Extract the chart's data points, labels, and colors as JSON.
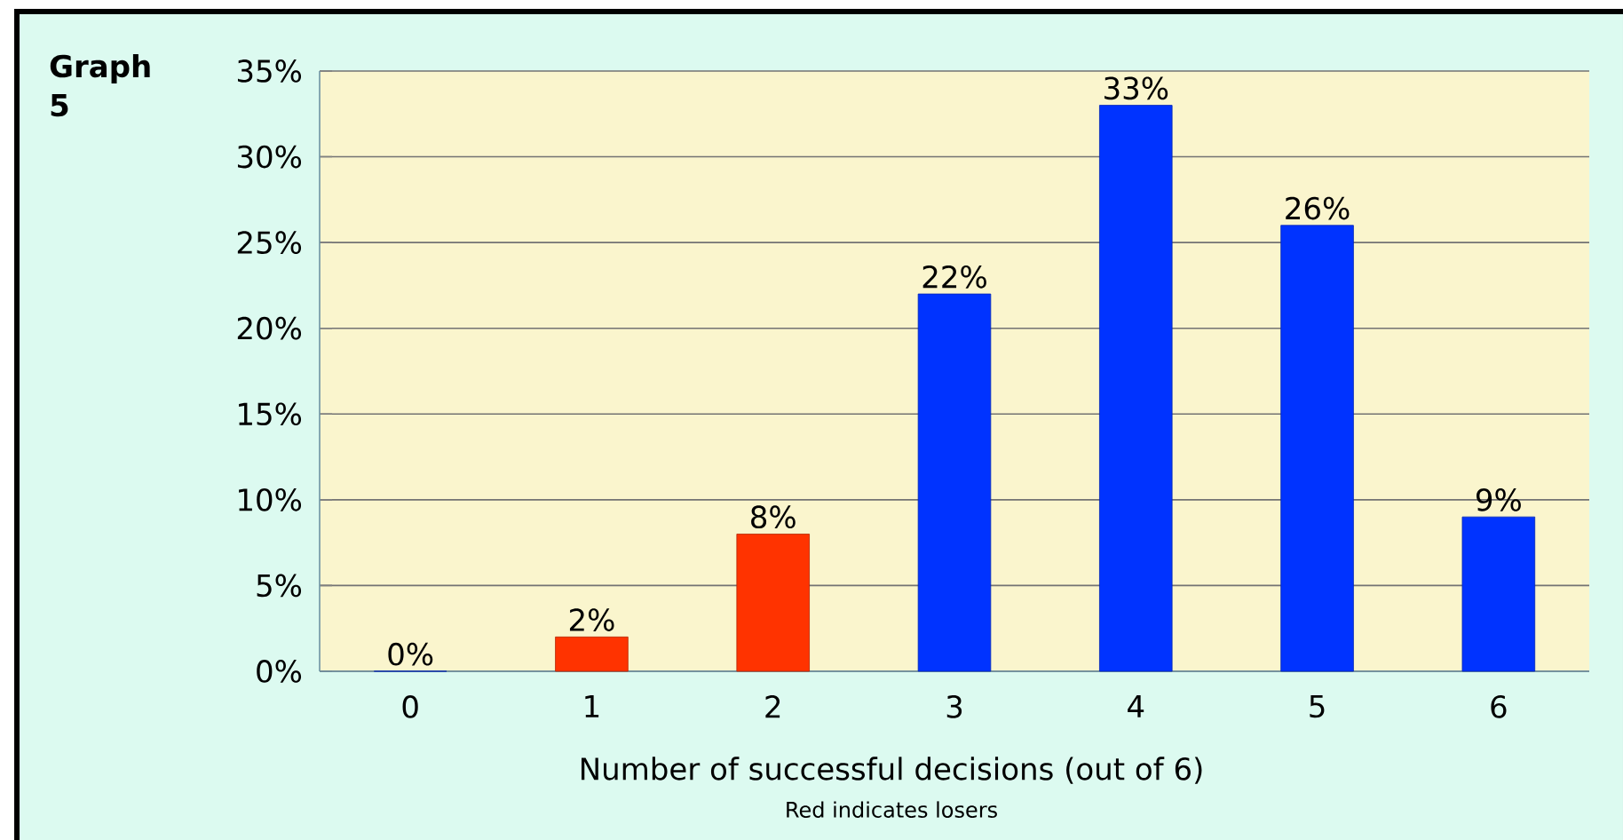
{
  "chart_data": {
    "type": "bar",
    "title": "Graph 5",
    "categories": [
      "0",
      "1",
      "2",
      "3",
      "4",
      "5",
      "6"
    ],
    "values": [
      0,
      2,
      8,
      22,
      33,
      26,
      9
    ],
    "colors": [
      "#0033ff",
      "#ff3300",
      "#ff3300",
      "#0033ff",
      "#0033ff",
      "#0033ff",
      "#0033ff"
    ],
    "value_labels": [
      "0%",
      "2%",
      "8%",
      "22%",
      "33%",
      "26%",
      "9%"
    ],
    "xlabel": "Number of successful decisions  (out of 6)",
    "annotations": [
      "Red indicates losers"
    ],
    "ylim": [
      0,
      35
    ],
    "yticks": [
      {
        "value": 0,
        "label": "0%"
      },
      {
        "value": 5,
        "label": "5%"
      },
      {
        "value": 10,
        "label": "10%"
      },
      {
        "value": 15,
        "label": "15%"
      },
      {
        "value": 20,
        "label": "20%"
      },
      {
        "value": 25,
        "label": "25%"
      },
      {
        "value": 30,
        "label": "30%"
      },
      {
        "value": 35,
        "label": "35%"
      }
    ],
    "grid": "y"
  }
}
